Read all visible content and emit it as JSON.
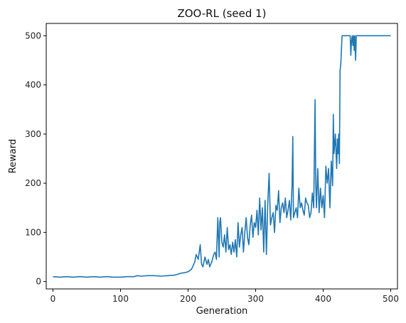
{
  "chart_data": {
    "type": "line",
    "title": "ZOO-RL (seed 1)",
    "xlabel": "Generation",
    "ylabel": "Reward",
    "xlim": [
      -10,
      510
    ],
    "ylim": [
      -15,
      525
    ],
    "xticks": [
      0,
      100,
      200,
      300,
      400,
      500
    ],
    "yticks": [
      0,
      100,
      200,
      300,
      400,
      500
    ],
    "grid": false,
    "legend": "none",
    "series": [
      {
        "color": "#1f77b4",
        "x": [
          0,
          10,
          20,
          30,
          40,
          50,
          60,
          70,
          80,
          90,
          100,
          110,
          120,
          125,
          130,
          140,
          150,
          160,
          170,
          180,
          190,
          195,
          200,
          205,
          210,
          212,
          215,
          218,
          220,
          222,
          225,
          228,
          230,
          232,
          235,
          238,
          240,
          242,
          244,
          246,
          247,
          248,
          250,
          252,
          254,
          256,
          258,
          260,
          262,
          264,
          266,
          268,
          270,
          272,
          274,
          276,
          278,
          280,
          282,
          284,
          286,
          288,
          290,
          292,
          294,
          296,
          298,
          300,
          302,
          304,
          306,
          308,
          310,
          312,
          314,
          316,
          318,
          320,
          322,
          324,
          326,
          328,
          330,
          332,
          334,
          336,
          338,
          340,
          342,
          344,
          346,
          348,
          350,
          352,
          354,
          355,
          356,
          358,
          360,
          362,
          364,
          366,
          368,
          370,
          372,
          374,
          376,
          378,
          380,
          382,
          384,
          386,
          388,
          389,
          390,
          392,
          394,
          396,
          398,
          400,
          402,
          404,
          406,
          408,
          410,
          412,
          414,
          415,
          416,
          418,
          420,
          421,
          422,
          423,
          424,
          425,
          426,
          428,
          430,
          432,
          434,
          436,
          438,
          440,
          441,
          442,
          443,
          444,
          445,
          446,
          447,
          448,
          449,
          450,
          452,
          455,
          460,
          470,
          480,
          490,
          500
        ],
        "y": [
          10,
          9,
          10,
          9,
          10,
          9,
          10,
          9,
          10,
          9,
          9,
          10,
          10,
          12,
          11,
          12,
          12,
          11,
          12,
          13,
          17,
          18,
          20,
          25,
          40,
          55,
          45,
          75,
          35,
          30,
          50,
          35,
          45,
          30,
          40,
          55,
          60,
          45,
          130,
          50,
          120,
          130,
          80,
          70,
          95,
          60,
          110,
          65,
          75,
          55,
          80,
          60,
          85,
          50,
          120,
          70,
          95,
          110,
          60,
          100,
          130,
          90,
          75,
          115,
          135,
          90,
          120,
          110,
          145,
          95,
          170,
          105,
          150,
          60,
          165,
          55,
          160,
          220,
          115,
          130,
          140,
          100,
          155,
          145,
          185,
          120,
          150,
          160,
          140,
          170,
          130,
          145,
          165,
          125,
          200,
          295,
          130,
          140,
          150,
          130,
          190,
          150,
          160,
          145,
          135,
          170,
          160,
          155,
          130,
          140,
          180,
          150,
          370,
          200,
          150,
          230,
          140,
          190,
          150,
          175,
          130,
          235,
          200,
          230,
          150,
          245,
          195,
          340,
          260,
          300,
          230,
          290,
          260,
          300,
          240,
          430,
          440,
          500,
          500,
          500,
          500,
          500,
          500,
          500,
          460,
          490,
          500,
          480,
          500,
          470,
          500,
          450,
          500,
          500,
          500,
          500,
          500,
          500,
          500,
          500,
          500
        ]
      }
    ]
  }
}
